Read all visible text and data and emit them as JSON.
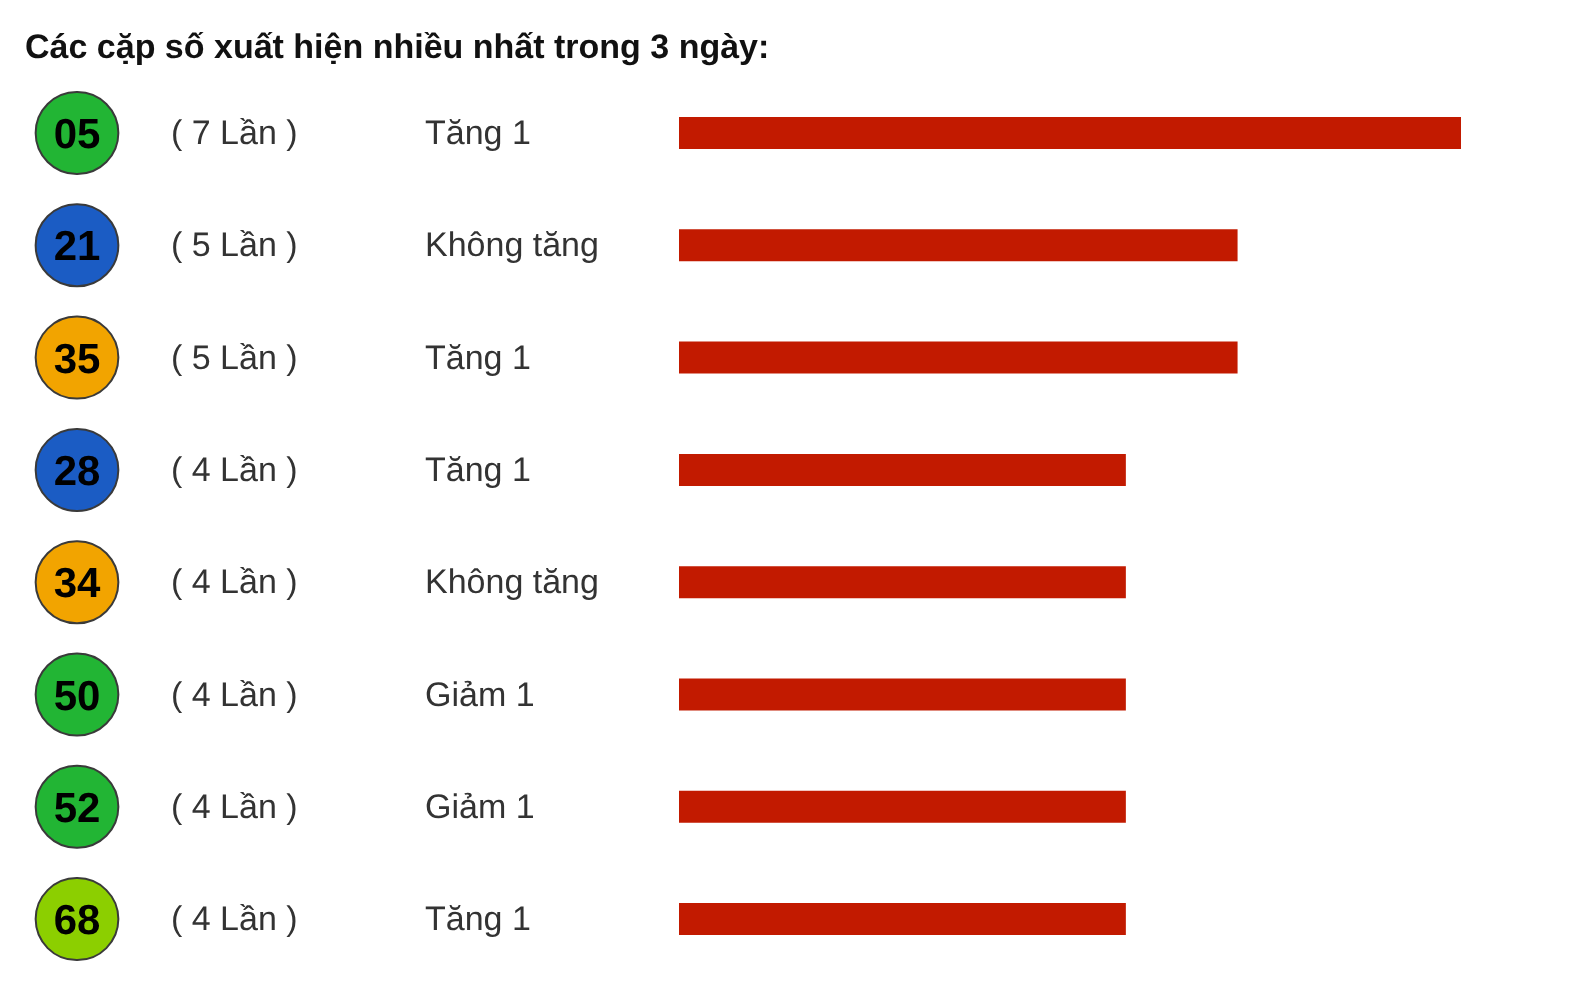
{
  "chart_data": {
    "type": "bar",
    "orientation": "horizontal",
    "title": "Các cặp số xuất hiện nhiều nhất trong 3 ngày:",
    "categories": [
      "05",
      "21",
      "35",
      "28",
      "34",
      "50",
      "52",
      "68"
    ],
    "values": [
      7,
      5,
      5,
      4,
      4,
      4,
      4,
      4
    ],
    "color": "#c21a00",
    "value_labels": [
      "( 7 Lần )",
      "( 5 Lần )",
      "( 5 Lần )",
      "( 4 Lần )",
      "( 4 Lần )",
      "( 4 Lần )",
      "( 4 Lần )",
      "( 4 Lần )"
    ],
    "annotations": [
      "Tăng 1",
      "Không tăng",
      "Tăng 1",
      "Tăng 1",
      "Không tăng",
      "Giảm 1",
      "Giảm 1",
      "Tăng 1"
    ]
  }
}
